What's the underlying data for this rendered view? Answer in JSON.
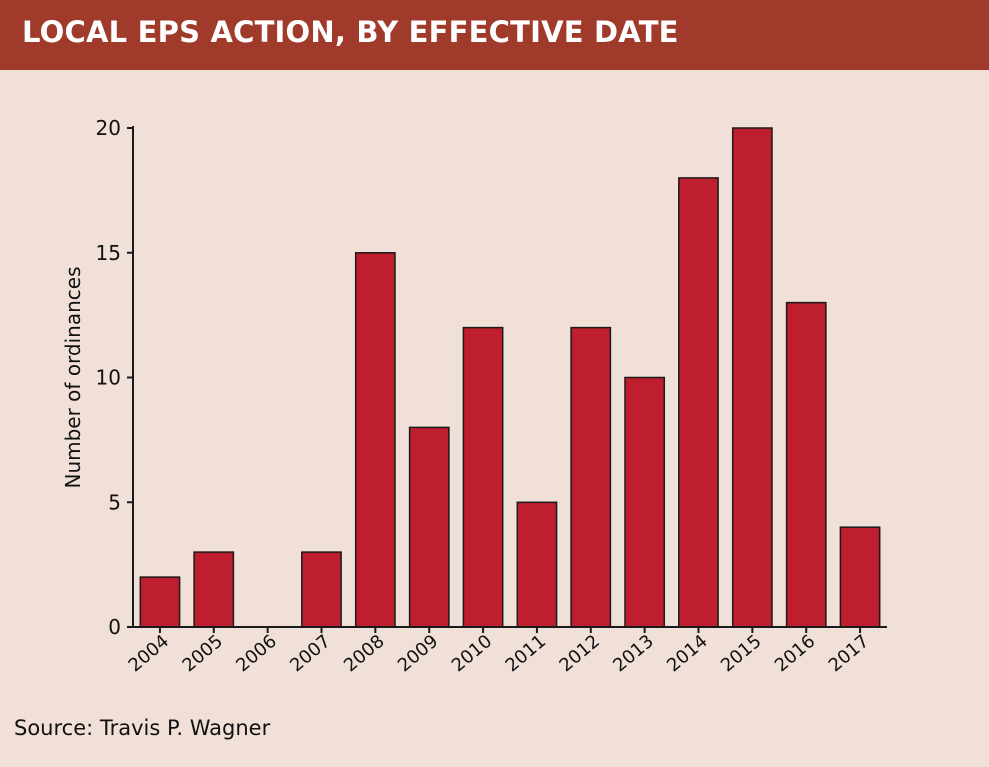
{
  "header": {
    "title": "LOCAL EPS ACTION, BY EFFECTIVE DATE"
  },
  "source": "Source: Travis P. Wagner",
  "colors": {
    "header_bg": "#a03a2a",
    "background": "#f0e0d8",
    "bar": "#be1e2d",
    "bar_stroke": "#1a1a1a"
  },
  "chart_data": {
    "type": "bar",
    "title": "LOCAL EPS ACTION, BY EFFECTIVE DATE",
    "xlabel": "",
    "ylabel": "Number of ordinances",
    "categories": [
      "2004",
      "2005",
      "2006",
      "2007",
      "2008",
      "2009",
      "2010",
      "2011",
      "2012",
      "2013",
      "2014",
      "2015",
      "2016",
      "2017"
    ],
    "values": [
      2,
      3,
      0,
      3,
      15,
      8,
      12,
      5,
      12,
      10,
      18,
      20,
      13,
      4
    ],
    "ylim": [
      0,
      20
    ],
    "yticks": [
      0,
      5,
      10,
      15,
      20
    ],
    "grid": false,
    "legend": "none"
  }
}
